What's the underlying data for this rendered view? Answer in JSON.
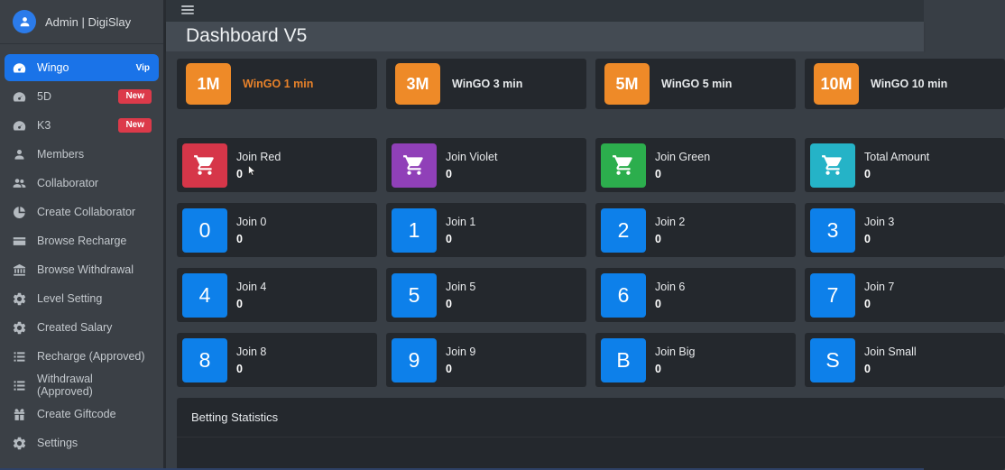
{
  "colors": {
    "accent_blue": "#1a73e8",
    "badge_red": "#dc3a4a",
    "timer_active_label": "#e8822a",
    "tile_orange": "#ee8a28",
    "tile_blue": "#0d80ea",
    "tile_red": "#d63649",
    "tile_violet": "#9040b8",
    "tile_green": "#2cae4d",
    "tile_teal": "#25b3c7"
  },
  "sidebar": {
    "profile": {
      "name": "Admin | DigiSlay",
      "icon": "avatar-icon"
    },
    "items": [
      {
        "label": "Wingo",
        "icon": "tachometer-icon",
        "badge": "Vip",
        "active": true
      },
      {
        "label": "5D",
        "icon": "tachometer-icon",
        "badge": "New"
      },
      {
        "label": "K3",
        "icon": "tachometer-icon",
        "badge": "New"
      },
      {
        "label": "Members",
        "icon": "user-icon"
      },
      {
        "label": "Collaborator",
        "icon": "users-icon"
      },
      {
        "label": "Create Collaborator",
        "icon": "pie-chart-icon"
      },
      {
        "label": "Browse Recharge",
        "icon": "credit-card-icon"
      },
      {
        "label": "Browse Withdrawal",
        "icon": "bank-icon"
      },
      {
        "label": "Level Setting",
        "icon": "cogs-icon"
      },
      {
        "label": "Created Salary",
        "icon": "cogs-icon"
      },
      {
        "label": "Recharge (Approved)",
        "icon": "list-icon"
      },
      {
        "label": "Withdrawal (Approved)",
        "icon": "list-icon"
      },
      {
        "label": "Create Giftcode",
        "icon": "gift-icon"
      },
      {
        "label": "Settings",
        "icon": "gear-icon"
      }
    ]
  },
  "topbar": {
    "menu_icon": "hamburger-icon"
  },
  "header": {
    "title": "Dashboard V5"
  },
  "timer_cards": [
    {
      "code": "1M",
      "label": "WinGO 1 min",
      "color": "#ee8a28",
      "active": true
    },
    {
      "code": "3M",
      "label": "WinGO 3 min",
      "color": "#ee8a28"
    },
    {
      "code": "5M",
      "label": "WinGO 5 min",
      "color": "#ee8a28"
    },
    {
      "code": "10M",
      "label": "WinGO 10 min",
      "color": "#ee8a28"
    }
  ],
  "join_cards": [
    {
      "label": "Join Red",
      "value": "0",
      "icon": "cart-icon",
      "color": "#d63649"
    },
    {
      "label": "Join Violet",
      "value": "0",
      "icon": "cart-icon",
      "color": "#9040b8"
    },
    {
      "label": "Join Green",
      "value": "0",
      "icon": "cart-icon",
      "color": "#2cae4d"
    },
    {
      "label": "Total Amount",
      "value": "0",
      "icon": "cart-icon",
      "color": "#25b3c7"
    },
    {
      "label": "Join 0",
      "value": "0",
      "glyph": "0",
      "color": "#0d80ea"
    },
    {
      "label": "Join 1",
      "value": "0",
      "glyph": "1",
      "color": "#0d80ea"
    },
    {
      "label": "Join 2",
      "value": "0",
      "glyph": "2",
      "color": "#0d80ea"
    },
    {
      "label": "Join 3",
      "value": "0",
      "glyph": "3",
      "color": "#0d80ea"
    },
    {
      "label": "Join 4",
      "value": "0",
      "glyph": "4",
      "color": "#0d80ea"
    },
    {
      "label": "Join 5",
      "value": "0",
      "glyph": "5",
      "color": "#0d80ea"
    },
    {
      "label": "Join 6",
      "value": "0",
      "glyph": "6",
      "color": "#0d80ea"
    },
    {
      "label": "Join 7",
      "value": "0",
      "glyph": "7",
      "color": "#0d80ea"
    },
    {
      "label": "Join 8",
      "value": "0",
      "glyph": "8",
      "color": "#0d80ea"
    },
    {
      "label": "Join 9",
      "value": "0",
      "glyph": "9",
      "color": "#0d80ea"
    },
    {
      "label": "Join Big",
      "value": "0",
      "glyph": "B",
      "color": "#0d80ea"
    },
    {
      "label": "Join Small",
      "value": "0",
      "glyph": "S",
      "color": "#0d80ea"
    }
  ],
  "stats_panel": {
    "title": "Betting Statistics"
  },
  "cursor": {
    "icon": "cursor-icon"
  }
}
